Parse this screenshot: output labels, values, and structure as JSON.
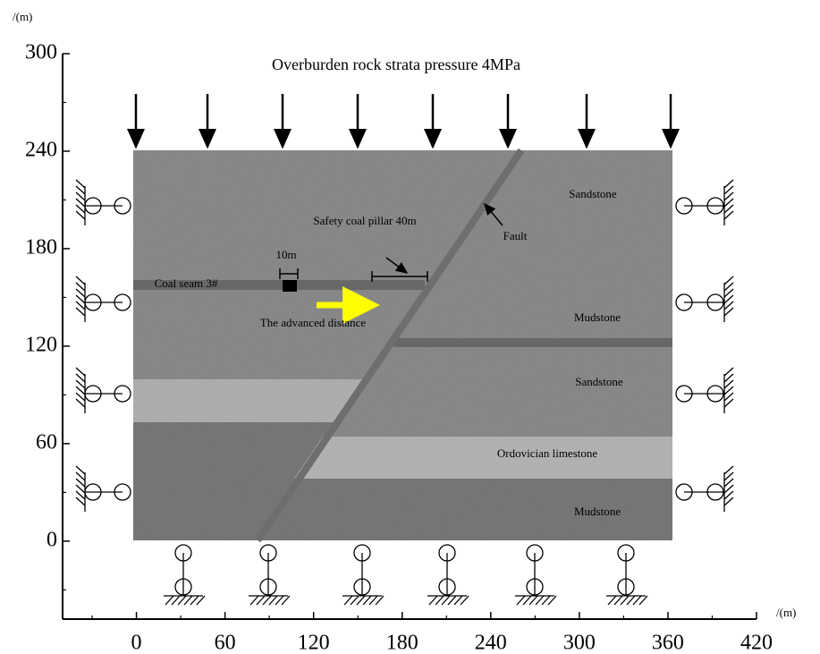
{
  "axes": {
    "xlim": [
      -50,
      420
    ],
    "ylim": [
      -48,
      300
    ],
    "xticks": [
      0,
      60,
      120,
      180,
      240,
      300,
      360,
      420
    ],
    "yticks": [
      0,
      60,
      120,
      180,
      240,
      300
    ],
    "xminor": [
      -30,
      30,
      90,
      150,
      210,
      270,
      330,
      390
    ],
    "yminor": [
      -30,
      30,
      90,
      150,
      210,
      270
    ],
    "xunit": "/(m)",
    "yunit": "/(m)"
  },
  "labels": {
    "title": "Overburden rock strata pressure 4MPa",
    "sandstone_top": "Sandstone",
    "pillar": "Safety coal pillar 40m",
    "fault": "Fault",
    "width": "10m",
    "coal": "Coal seam 3#",
    "mudstone_mid": "Mudstone",
    "advance": "The advanced distance",
    "sandstone_mid": "Sandstone",
    "limestone": "Ordovician limestone",
    "mudstone_bottom": "Mudstone"
  }
}
